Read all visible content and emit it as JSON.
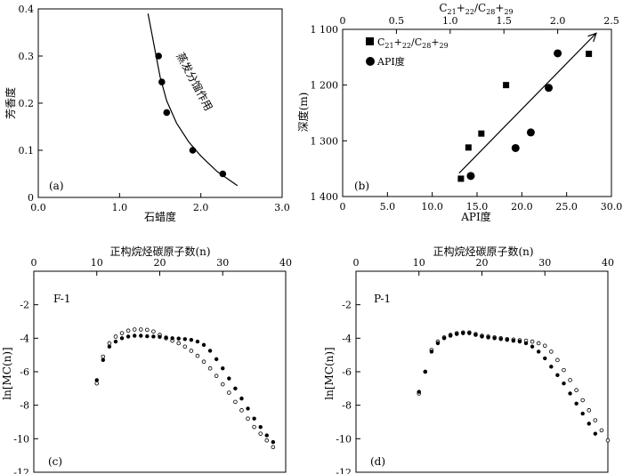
{
  "charts": [
    {
      "id": "a",
      "panel_label": "(a)",
      "xlabel": "石蜡度",
      "ylabel": "芳香度",
      "curve_label": "蒸发分馏作用"
    },
    {
      "id": "b",
      "panel_label": "(b)",
      "xlabel": "API度",
      "ylabel": "深度(m)",
      "top_label": "C21+22/C28+29",
      "top_label_parts": {
        "base1": "C",
        "sub1": "21",
        "plus1": "+",
        "sub2": "22",
        "slash": "/C",
        "sub3": "28",
        "plus2": "+",
        "sub4": "29"
      },
      "legend": [
        "C21+22/C28+29",
        "API度"
      ],
      "legend_parts": {
        "base1": "C",
        "sub1": "21",
        "plus1": "+",
        "sub2": "22",
        "slash": "/C",
        "sub3": "28",
        "plus2": "+",
        "sub4": "29"
      },
      "legend_api": "API度"
    },
    {
      "id": "c",
      "panel_label": "(c)",
      "top_title": "正构烷烃碳原子数(n)",
      "ylabel": "ln[MC(n)]",
      "well_label": "F-1"
    },
    {
      "id": "d",
      "panel_label": "(d)",
      "top_title": "正构烷烃碳原子数(n)",
      "ylabel": "ln[MC(n)]",
      "well_label": "P-1"
    }
  ],
  "chart_data": [
    {
      "type": "scatter",
      "xlim": [
        0.0,
        3.0
      ],
      "ylim": [
        0.0,
        0.4
      ],
      "xticks": [
        "0.0",
        "1.0",
        "2.0",
        "3.0"
      ],
      "yticks": [
        "0",
        "0.1",
        "0.2",
        "0.3",
        "0.4"
      ],
      "series": [
        {
          "marker": "circle-filled",
          "x": [
            1.48,
            1.52,
            1.58,
            1.9,
            2.27
          ],
          "y": [
            0.3,
            0.245,
            0.18,
            0.1,
            0.05
          ]
        }
      ],
      "curve": {
        "x": [
          1.35,
          1.4,
          1.45,
          1.5,
          1.58,
          1.7,
          1.85,
          2.0,
          2.2,
          2.45
        ],
        "y": [
          0.39,
          0.345,
          0.3,
          0.255,
          0.205,
          0.158,
          0.118,
          0.088,
          0.055,
          0.025
        ]
      }
    },
    {
      "type": "scatter",
      "xlim": [
        0.0,
        30.0
      ],
      "ylim": [
        1400,
        1100
      ],
      "xlim_top": [
        0,
        2.5
      ],
      "xticks": [
        "0",
        "5.0",
        "10.0",
        "15.0",
        "20.0",
        "25.0",
        "30.0"
      ],
      "xticks_top": [
        "0",
        "0.5",
        "1.0",
        "1.5",
        "2.0",
        "2.5"
      ],
      "yticks": [
        "1 100",
        "1 200",
        "1 300",
        "1 400"
      ],
      "series": [
        {
          "marker": "square-filled",
          "x_top": [
            1.1,
            1.17,
            1.29,
            1.52,
            2.29
          ],
          "y": [
            1368,
            1312,
            1287,
            1200,
            1144
          ]
        },
        {
          "marker": "circle-filled",
          "x": [
            14.3,
            19.3,
            21.0,
            23.0,
            24.0
          ],
          "y": [
            1363,
            1313,
            1285,
            1205,
            1143
          ]
        }
      ],
      "trend_arrow": {
        "x": [
          13.0,
          28.3
        ],
        "y": [
          1358,
          1107
        ]
      }
    },
    {
      "type": "scatter",
      "xlim": [
        0,
        40
      ],
      "ylim": [
        -12,
        0
      ],
      "xticks": [
        "0",
        "10",
        "20",
        "30",
        "40"
      ],
      "yticks": [
        "-2",
        "-4",
        "-6",
        "-8",
        "-10",
        "-12"
      ],
      "series": [
        {
          "marker": "circle-filled",
          "x": [
            10,
            11,
            12,
            13,
            14,
            15,
            16,
            17,
            18,
            19,
            20,
            21,
            22,
            23,
            24,
            25,
            26,
            27,
            28,
            29,
            30,
            31,
            32,
            33,
            34,
            35,
            36,
            37,
            38
          ],
          "y": [
            -6.5,
            -5.3,
            -4.5,
            -4.2,
            -4.0,
            -3.9,
            -3.85,
            -3.85,
            -3.88,
            -3.9,
            -3.92,
            -3.95,
            -4.0,
            -4.02,
            -4.05,
            -4.1,
            -4.2,
            -4.4,
            -4.75,
            -5.25,
            -5.8,
            -6.4,
            -7.0,
            -7.6,
            -8.2,
            -8.8,
            -9.3,
            -9.8,
            -10.2
          ]
        },
        {
          "marker": "circle-open",
          "x": [
            10,
            11,
            12,
            13,
            14,
            15,
            16,
            17,
            18,
            19,
            20,
            21,
            22,
            23,
            24,
            25,
            26,
            27,
            28,
            29,
            30,
            31,
            32,
            33,
            34,
            35,
            36,
            37,
            38
          ],
          "y": [
            -6.7,
            -5.1,
            -4.3,
            -3.9,
            -3.7,
            -3.55,
            -3.48,
            -3.48,
            -3.5,
            -3.6,
            -3.8,
            -4.0,
            -4.15,
            -4.3,
            -4.5,
            -4.75,
            -5.05,
            -5.4,
            -5.8,
            -6.25,
            -6.75,
            -7.25,
            -7.8,
            -8.3,
            -8.8,
            -9.3,
            -9.7,
            -10.1,
            -10.5
          ]
        }
      ]
    },
    {
      "type": "scatter",
      "xlim": [
        0,
        40
      ],
      "ylim": [
        -12,
        0
      ],
      "xticks": [
        "0",
        "10",
        "20",
        "30",
        "40"
      ],
      "yticks": [
        "-2",
        "-4",
        "-6",
        "-8",
        "-10",
        "-12"
      ],
      "series": [
        {
          "marker": "circle-filled",
          "x": [
            10,
            11,
            12,
            13,
            14,
            15,
            16,
            17,
            18,
            19,
            20,
            21,
            22,
            23,
            24,
            25,
            26,
            27,
            28,
            29,
            30,
            31,
            32,
            33,
            34,
            35,
            36,
            37,
            38
          ],
          "y": [
            -7.2,
            -6.0,
            -4.8,
            -4.3,
            -4.0,
            -3.85,
            -3.75,
            -3.7,
            -3.7,
            -3.8,
            -3.9,
            -3.95,
            -4.0,
            -4.05,
            -4.1,
            -4.15,
            -4.2,
            -4.3,
            -4.5,
            -4.8,
            -5.2,
            -5.7,
            -6.2,
            -6.7,
            -7.3,
            -7.9,
            -8.5,
            -9.1,
            -9.7
          ]
        },
        {
          "marker": "circle-open",
          "x": [
            10,
            11,
            12,
            13,
            14,
            15,
            16,
            17,
            18,
            19,
            20,
            21,
            22,
            23,
            24,
            25,
            26,
            27,
            28,
            29,
            30,
            31,
            32,
            33,
            34,
            35,
            36,
            37,
            38,
            39,
            40
          ],
          "y": [
            -7.3,
            -6.0,
            -4.7,
            -4.2,
            -3.95,
            -3.8,
            -3.7,
            -3.65,
            -3.65,
            -3.75,
            -3.85,
            -3.9,
            -3.95,
            -4.0,
            -4.05,
            -4.08,
            -4.12,
            -4.15,
            -4.2,
            -4.3,
            -4.45,
            -4.8,
            -5.3,
            -5.9,
            -6.5,
            -7.1,
            -7.7,
            -8.3,
            -8.9,
            -9.5,
            -10.1
          ]
        }
      ]
    }
  ]
}
